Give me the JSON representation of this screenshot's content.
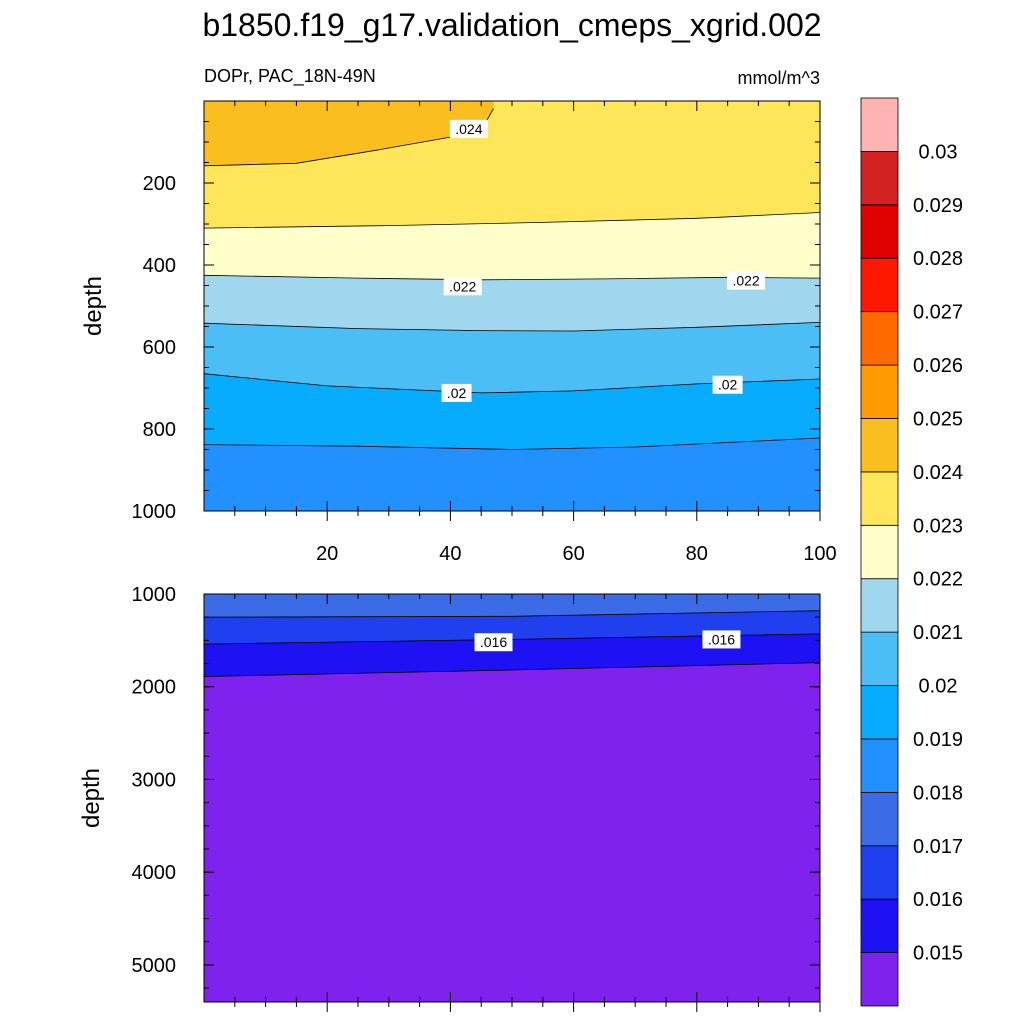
{
  "chart_data": [
    {
      "type": "contour",
      "title": "b1850.f19_g17.validation_cmeps_xgrid.002",
      "subtitle_left": "DOPr, PAC_18N-49N",
      "subtitle_right": "mmol/m^3",
      "xlabel": "",
      "ylabel": "depth",
      "xlim": [
        0,
        100
      ],
      "ylim": [
        1000,
        0
      ],
      "xticks": [
        20,
        40,
        60,
        80,
        100
      ],
      "yticks": [
        200,
        400,
        600,
        800,
        1000
      ],
      "bands": [
        {
          "range": [
            0.0235,
            0.025
          ],
          "color": "#FBBE1F",
          "depth_at_x": [
            [
              0,
              158
            ],
            [
              15,
              152
            ],
            [
              28,
              120
            ],
            [
              40,
              88
            ],
            [
              45,
              72
            ],
            [
              47,
              18
            ]
          ]
        },
        {
          "range": [
            0.023,
            0.0235
          ],
          "color": "#FFE55A",
          "depth_at_x": [
            [
              0,
              310
            ],
            [
              30,
              304
            ],
            [
              55,
              296
            ],
            [
              80,
              286
            ],
            [
              100,
              272
            ]
          ]
        },
        {
          "range": [
            0.022,
            0.023
          ],
          "color": "#FFFFCC",
          "depth_at_x": [
            [
              0,
              425
            ],
            [
              25,
              432
            ],
            [
              45,
              436
            ],
            [
              65,
              434
            ],
            [
              85,
              430
            ],
            [
              100,
              432
            ]
          ]
        },
        {
          "range": [
            0.021,
            0.022
          ],
          "color": "#A1D6EF",
          "depth_at_x": [
            [
              0,
              542
            ],
            [
              25,
              555
            ],
            [
              45,
              560
            ],
            [
              60,
              561
            ],
            [
              80,
              552
            ],
            [
              100,
              540
            ]
          ]
        },
        {
          "range": [
            0.02,
            0.021
          ],
          "color": "#4ABEF5",
          "depth_at_x": [
            [
              0,
              665
            ],
            [
              20,
              695
            ],
            [
              45,
              712
            ],
            [
              60,
              707
            ],
            [
              80,
              690
            ],
            [
              100,
              678
            ]
          ]
        },
        {
          "range": [
            0.019,
            0.02
          ],
          "color": "#08ACFF",
          "depth_at_x": [
            [
              0,
              838
            ],
            [
              25,
              842
            ],
            [
              50,
              850
            ],
            [
              70,
              844
            ],
            [
              100,
              822
            ]
          ]
        },
        {
          "range": [
            0.018,
            0.019
          ],
          "color": "#2290FF",
          "depth_at_x": [
            [
              0,
              1000
            ],
            [
              100,
              1000
            ]
          ]
        }
      ],
      "line_labels": [
        {
          "text": ".024",
          "x": 43,
          "depth": 68
        },
        {
          "text": ".022",
          "x": 42,
          "depth": 452
        },
        {
          "text": ".022",
          "x": 88,
          "depth": 438
        },
        {
          "text": ".02",
          "x": 41,
          "depth": 712
        },
        {
          "text": ".02",
          "x": 85,
          "depth": 692
        }
      ]
    },
    {
      "type": "contour",
      "xlabel": "",
      "ylabel": "depth",
      "xlim": [
        0,
        100
      ],
      "ylim": [
        5400,
        1000
      ],
      "yticks": [
        1000,
        2000,
        3000,
        4000,
        5000
      ],
      "bands": [
        {
          "range": [
            0.017,
            0.018
          ],
          "color": "#3C6BE8",
          "depth_at_x": [
            [
              0,
              1250
            ],
            [
              50,
              1240
            ],
            [
              100,
              1180
            ]
          ]
        },
        {
          "range": [
            0.016,
            0.017
          ],
          "color": "#2040EF",
          "depth_at_x": [
            [
              0,
              1540
            ],
            [
              50,
              1490
            ],
            [
              100,
              1430
            ]
          ]
        },
        {
          "range": [
            0.015,
            0.016
          ],
          "color": "#1E12F5",
          "depth_at_x": [
            [
              0,
              1890
            ],
            [
              50,
              1820
            ],
            [
              100,
              1740
            ]
          ]
        },
        {
          "range": [
            0.014,
            0.015
          ],
          "color": "#7F22EE",
          "depth_at_x": [
            [
              0,
              5400
            ],
            [
              100,
              5400
            ]
          ]
        }
      ],
      "line_labels": [
        {
          "text": ".016",
          "x": 47,
          "depth": 1520
        },
        {
          "text": ".016",
          "x": 84,
          "depth": 1490
        }
      ]
    }
  ],
  "colorbar": {
    "labels": [
      "0.015",
      "0.016",
      "0.017",
      "0.018",
      "0.019",
      "0.02",
      "0.021",
      "0.022",
      "0.023",
      "0.024",
      "0.025",
      "0.026",
      "0.027",
      "0.028",
      "0.029",
      "0.03"
    ],
    "colors": [
      "#7F22EE",
      "#1E12F5",
      "#2040EF",
      "#3C6BE8",
      "#2290FF",
      "#08ACFF",
      "#4ABEF5",
      "#A1D6EF",
      "#FFFFCC",
      "#FFE55A",
      "#FBBE1F",
      "#FF9A00",
      "#FF6A00",
      "#FF1800",
      "#E10000",
      "#D22222",
      "#FFB3B3"
    ]
  }
}
